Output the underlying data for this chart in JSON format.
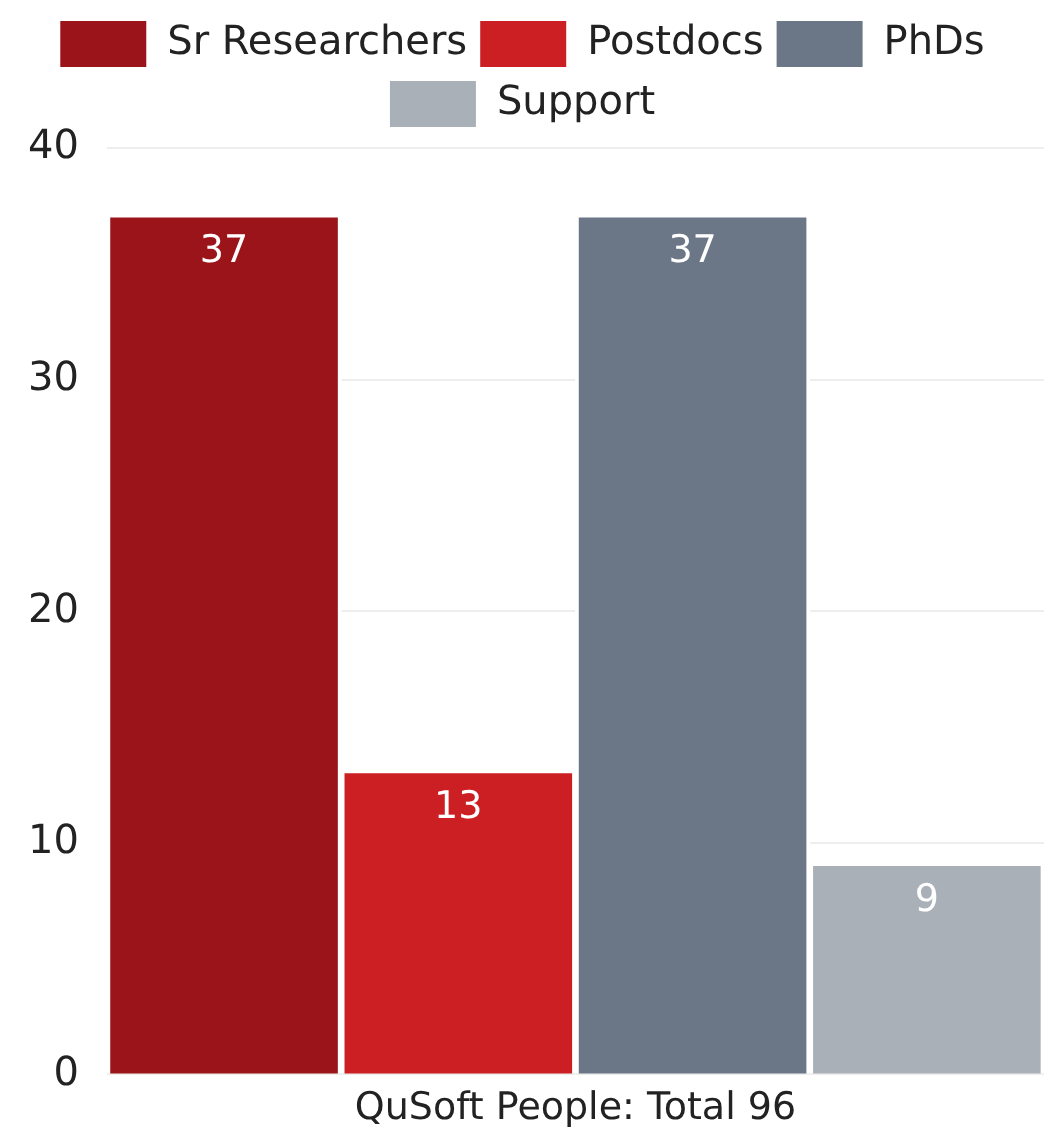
{
  "chart_data": {
    "type": "bar",
    "categories": [
      "QuSoft People: Total 96"
    ],
    "series": [
      {
        "name": "Sr Researchers",
        "color": "#9b1419",
        "values": [
          37
        ]
      },
      {
        "name": "Postdocs",
        "color": "#cc1f24",
        "values": [
          13
        ]
      },
      {
        "name": "PhDs",
        "color": "#6b7787",
        "values": [
          37
        ]
      },
      {
        "name": "Support",
        "color": "#a9b0b8",
        "values": [
          9
        ]
      }
    ],
    "ylim": [
      0,
      40
    ],
    "yticks": [
      0,
      10,
      20,
      30,
      40
    ],
    "grid": "y",
    "legend": "top",
    "data_labels": true
  }
}
